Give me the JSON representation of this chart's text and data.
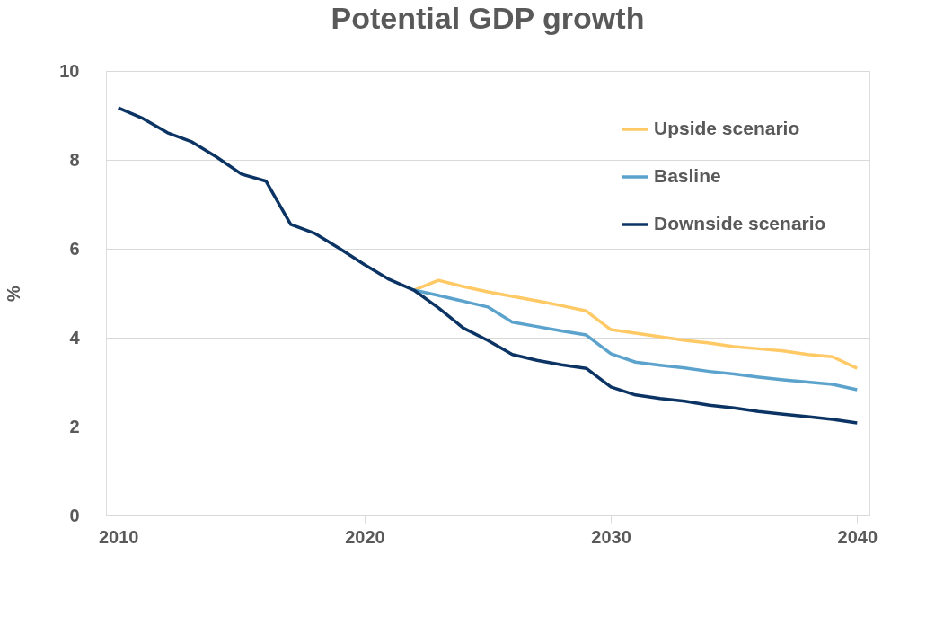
{
  "chart_data": {
    "type": "line",
    "title": "Potential GDP growth",
    "ylabel": "%",
    "xlim": [
      2009.5,
      2040.5
    ],
    "xticks": [
      2010,
      2020,
      2030,
      2040
    ],
    "ylim": [
      0,
      10
    ],
    "yticks": [
      0,
      2,
      4,
      6,
      8,
      10
    ],
    "grid": "y",
    "legend": "top right",
    "marker": "none",
    "line_style": "solid",
    "series": [
      {
        "name": "Upside scenario",
        "color": "#ffc966",
        "x": [
          2022,
          2023,
          2024,
          2025,
          2026,
          2027,
          2028,
          2029,
          2030,
          2031,
          2032,
          2033,
          2034,
          2035,
          2036,
          2037,
          2038,
          2039,
          2040
        ],
        "values": [
          5.07,
          5.29,
          5.15,
          5.03,
          4.93,
          4.83,
          4.72,
          4.6,
          4.18,
          4.1,
          4.02,
          3.94,
          3.88,
          3.8,
          3.75,
          3.7,
          3.62,
          3.57,
          3.31
        ]
      },
      {
        "name": "Basline",
        "color": "#5ba3cc",
        "x": [
          2022,
          2023,
          2024,
          2025,
          2026,
          2027,
          2028,
          2029,
          2030,
          2031,
          2032,
          2033,
          2034,
          2035,
          2036,
          2037,
          2038,
          2039,
          2040
        ],
        "values": [
          5.07,
          4.95,
          4.82,
          4.69,
          4.35,
          4.25,
          4.15,
          4.06,
          3.64,
          3.45,
          3.38,
          3.32,
          3.24,
          3.18,
          3.11,
          3.05,
          3.0,
          2.95,
          2.83
        ]
      },
      {
        "name": "Downside scenario",
        "color": "#0b3464",
        "x": [
          2010,
          2011,
          2012,
          2013,
          2014,
          2015,
          2016,
          2017,
          2018,
          2019,
          2020,
          2021,
          2022,
          2023,
          2024,
          2025,
          2026,
          2027,
          2028,
          2029,
          2030,
          2031,
          2032,
          2033,
          2034,
          2035,
          2036,
          2037,
          2038,
          2039,
          2040
        ],
        "values": [
          9.17,
          8.93,
          8.61,
          8.4,
          8.06,
          7.68,
          7.52,
          6.55,
          6.34,
          6.0,
          5.64,
          5.31,
          5.07,
          4.67,
          4.22,
          3.94,
          3.62,
          3.49,
          3.39,
          3.31,
          2.89,
          2.71,
          2.63,
          2.57,
          2.48,
          2.42,
          2.34,
          2.28,
          2.22,
          2.16,
          2.08
        ]
      }
    ]
  }
}
